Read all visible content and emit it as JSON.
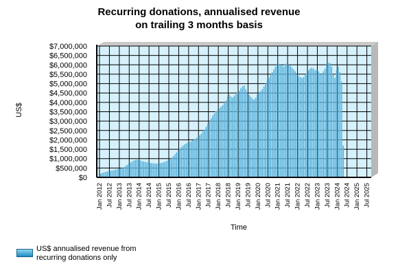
{
  "title": "Recurring donations, annualised revenue\non trailing 3 months basis",
  "colors": {
    "plot_background": "#d6f1fb",
    "bar_fill": "#2a93c8",
    "bar_light": "#9edcf4",
    "grid": "#000000",
    "wall_shade": "#b8b8b8"
  },
  "chart_data": {
    "type": "bar",
    "title": "Recurring donations, annualised revenue\non trailing 3 months basis",
    "xlabel": "Time",
    "ylabel": "US$",
    "ylim": [
      0,
      7000000
    ],
    "y_ticks": [
      "$0",
      "$500,000",
      "$1,000,000",
      "$1,500,000",
      "$2,000,000",
      "$2,500,000",
      "$3,000,000",
      "$3,500,000",
      "$4,000,000",
      "$4,500,000",
      "$5,000,000",
      "$5,500,000",
      "$6,000,000",
      "$6,500,000",
      "$7,000,000"
    ],
    "x_ticks": [
      "Jan 2012",
      "Jul 2012",
      "Jan 2013",
      "Jul 2013",
      "Jan 2014",
      "Jul 2014",
      "Jan 2015",
      "Jul 2015",
      "Jan 2016",
      "Jul 2016",
      "Jan 2017",
      "Jul 2017",
      "Jan 2018",
      "Jul 2018",
      "Jan 2019",
      "Jul 2019",
      "Jan 2020",
      "Jul 2020",
      "Jan 2021",
      "Jul 2021",
      "Jan 2022",
      "Jul 2022",
      "Jan 2023",
      "Jul 2023",
      "Jan 2024",
      "Jul 2024",
      "Jan 2025",
      "Jul 2025"
    ],
    "grid": true,
    "legend_position": "bottom-left",
    "series": [
      {
        "name": "US$ annualised revenue from\nrecurring donations only",
        "x_start": "2012-01",
        "x_end": "2025-04",
        "values": [
          200000,
          230000,
          260000,
          290000,
          310000,
          330000,
          350000,
          370000,
          390000,
          410000,
          430000,
          450000,
          470000,
          500000,
          540000,
          600000,
          660000,
          720000,
          780000,
          840000,
          890000,
          930000,
          950000,
          930000,
          900000,
          870000,
          850000,
          830000,
          810000,
          790000,
          770000,
          760000,
          750000,
          740000,
          740000,
          750000,
          760000,
          780000,
          800000,
          830000,
          870000,
          920000,
          980000,
          1050000,
          1130000,
          1220000,
          1320000,
          1430000,
          1530000,
          1620000,
          1700000,
          1760000,
          1810000,
          1850000,
          1890000,
          1930000,
          1980000,
          2030000,
          2090000,
          2160000,
          2240000,
          2330000,
          2440000,
          2560000,
          2700000,
          2850000,
          3000000,
          3150000,
          3300000,
          3420000,
          3520000,
          3600000,
          3680000,
          3760000,
          3850000,
          3950000,
          4100000,
          4300000,
          4400000,
          4300000,
          4250000,
          4350000,
          4450000,
          4550000,
          4600000,
          4750000,
          4850000,
          4900000,
          4700000,
          4500000,
          4400000,
          4300000,
          4200000,
          4150000,
          4250000,
          4400000,
          4500000,
          4600000,
          4700000,
          4850000,
          5000000,
          5150000,
          5300000,
          5450000,
          5600000,
          5750000,
          5900000,
          6000000,
          6050000,
          6000000,
          5950000,
          5900000,
          6050000,
          6100000,
          6000000,
          5950000,
          5850000,
          5750000,
          5650000,
          5500000,
          5400000,
          5350000,
          5300000,
          5350000,
          5450000,
          5550000,
          5700000,
          5800000,
          5850000,
          5800000,
          5700000,
          5750000,
          5650000,
          5550000,
          5500000,
          5650000,
          5800000,
          6000000,
          6100000,
          6100000,
          5900000,
          5500000,
          5300000,
          5700000,
          5900000,
          5600000,
          5100000,
          1700000
        ]
      }
    ]
  },
  "legend": {
    "label": "US$ annualised revenue from\nrecurring donations only"
  }
}
